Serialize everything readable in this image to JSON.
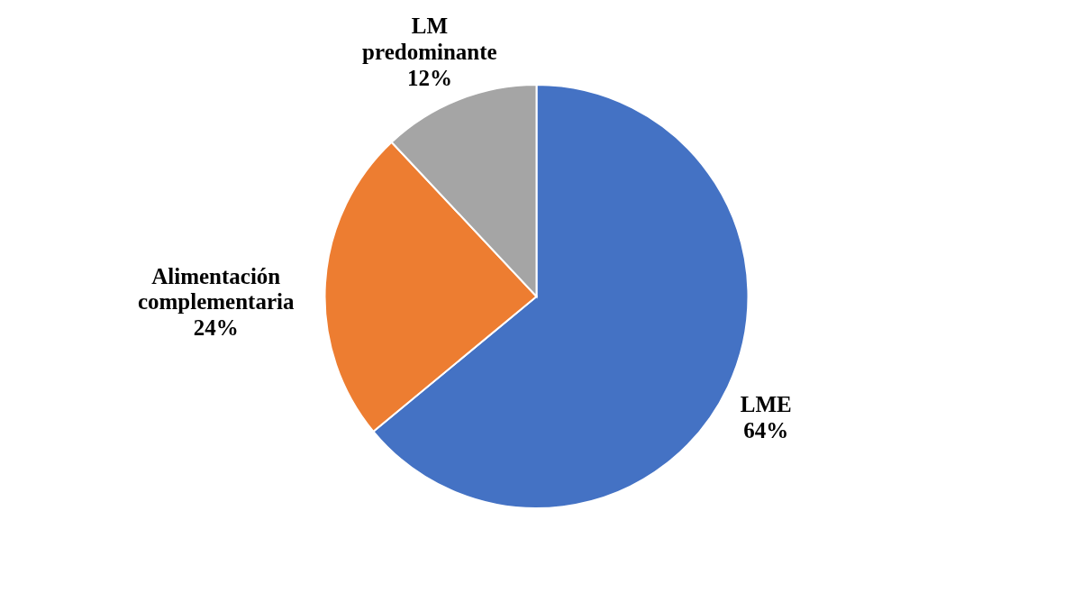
{
  "chart_data": {
    "type": "pie",
    "categories": [
      "LME",
      "Alimentación complementaria",
      "LM predominante"
    ],
    "values": [
      64,
      24,
      12
    ],
    "colors": [
      "#4472c4",
      "#ed7d31",
      "#a5a5a5"
    ],
    "value_labels": [
      "64%",
      "24%",
      "12%"
    ]
  }
}
